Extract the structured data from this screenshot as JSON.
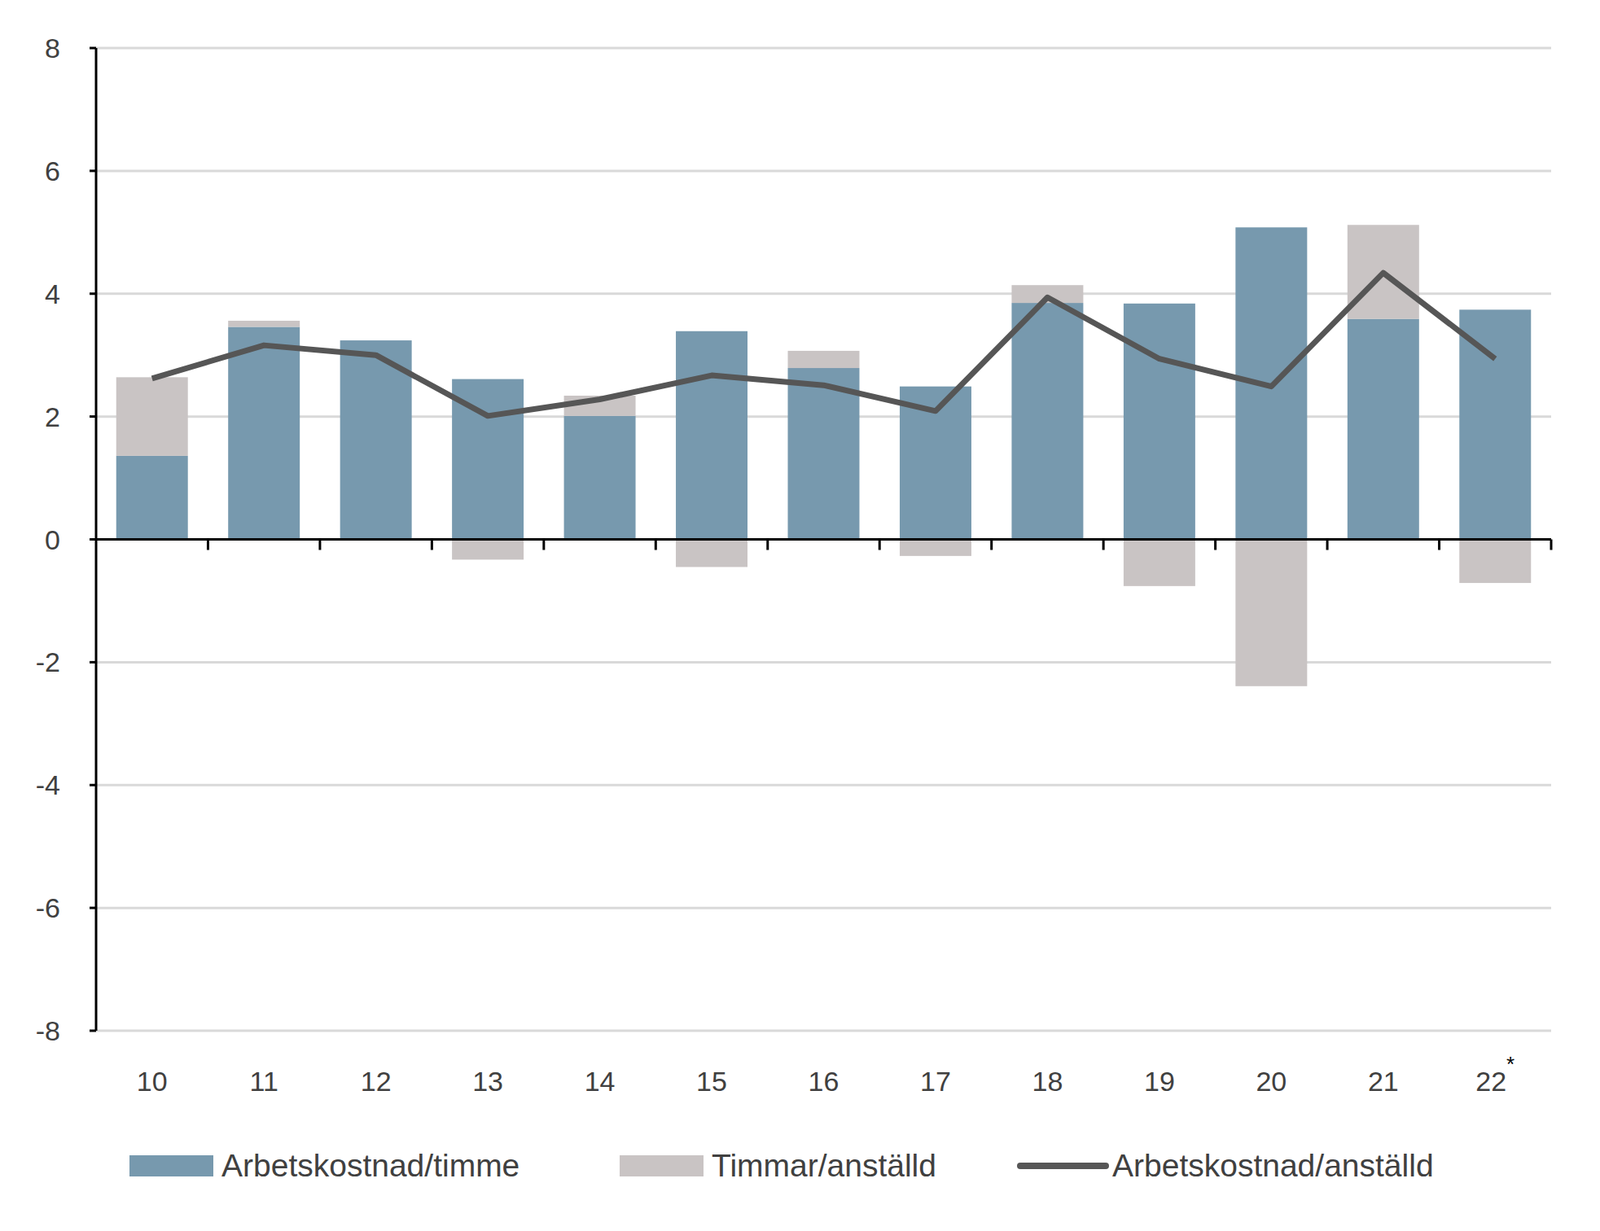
{
  "chart_data": {
    "type": "bar",
    "stacked": true,
    "grid": true,
    "legend": "bottom",
    "categories": [
      "10",
      "11",
      "12",
      "13",
      "14",
      "15",
      "16",
      "17",
      "18",
      "19",
      "20",
      "21",
      "22*"
    ],
    "series": [
      {
        "name": "Arbetskostnad/timme",
        "type": "bar",
        "color": "#7799ae",
        "values": [
          1.36,
          3.46,
          3.24,
          2.61,
          2.01,
          3.39,
          2.79,
          2.49,
          3.85,
          3.84,
          5.08,
          3.59,
          3.74
        ]
      },
      {
        "name": "Timmar/anställd",
        "type": "bar",
        "color": "#c9c4c4",
        "values": [
          1.28,
          0.1,
          0,
          -0.33,
          0.33,
          -0.45,
          0.28,
          -0.27,
          0.29,
          -0.76,
          -2.39,
          1.53,
          -0.71
        ]
      },
      {
        "name": "Arbetskostnad/anställd",
        "type": "line",
        "color": "#565656",
        "values": [
          2.62,
          3.16,
          3.0,
          2.01,
          2.28,
          2.67,
          2.51,
          2.09,
          3.94,
          2.94,
          2.49,
          4.34,
          2.94
        ]
      }
    ],
    "ylim": [
      -8,
      8
    ],
    "yticks": [
      -8,
      -6,
      -4,
      -2,
      0,
      2,
      4,
      6,
      8
    ]
  }
}
